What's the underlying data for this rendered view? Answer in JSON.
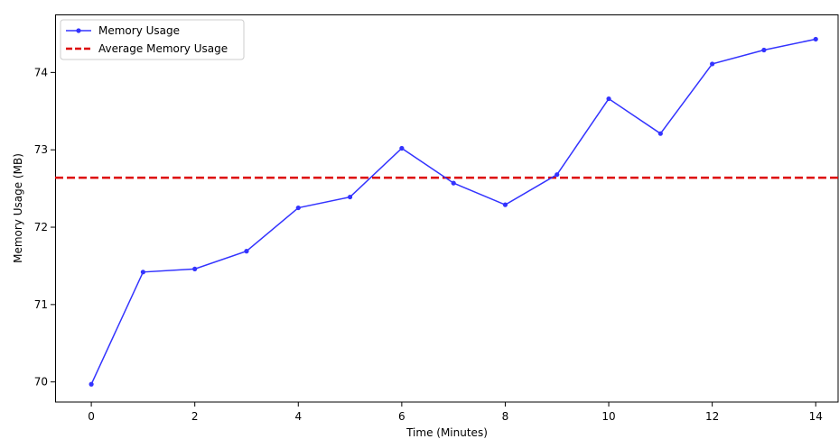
{
  "chart_data": {
    "type": "line",
    "title": "",
    "xlabel": "Time (Minutes)",
    "ylabel": "Memory Usage (MB)",
    "xlim": [
      -0.7,
      14.45
    ],
    "ylim": [
      69.74,
      74.75
    ],
    "xticks": [
      0,
      2,
      4,
      6,
      8,
      10,
      12,
      14
    ],
    "yticks": [
      70,
      71,
      72,
      73,
      74
    ],
    "grid": false,
    "legend_position": "upper-left",
    "series": [
      {
        "name": "Memory Usage",
        "color": "#3333ff",
        "marker": "circle",
        "x": [
          0,
          1,
          2,
          3,
          4,
          5,
          6,
          7,
          8,
          9,
          10,
          11,
          12,
          13,
          14
        ],
        "y": [
          69.97,
          71.42,
          71.46,
          71.69,
          72.25,
          72.39,
          73.02,
          72.57,
          72.29,
          72.68,
          73.66,
          73.21,
          74.11,
          74.29,
          74.43
        ]
      }
    ],
    "reference_lines": [
      {
        "name": "Average Memory Usage",
        "orientation": "horizontal",
        "value": 72.64,
        "color": "#dd0000",
        "style": "dashed"
      }
    ]
  }
}
